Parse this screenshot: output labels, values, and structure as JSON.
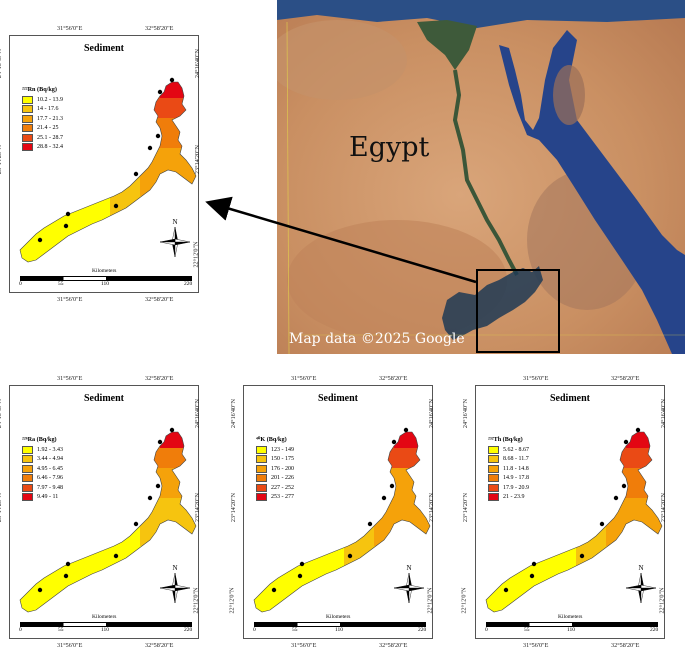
{
  "map_title": "Sediment",
  "coords": {
    "top_left": "31°56'0\"E",
    "top_right": "32°58'20\"E",
    "bottom_left": "31°56'0\"E",
    "bottom_right": "32°58'20\"E",
    "lat_top": "24°16'40\"N",
    "lat_mid": "23°14'20\"N",
    "lat_bottom": "22°12'0\"N"
  },
  "scale": {
    "title": "Kilometers",
    "t0": "0",
    "t1": "55",
    "t2": "110",
    "t3": "220"
  },
  "north_label": "N",
  "satellite": {
    "country_label": "Egypt",
    "attribution": "Map data ©2025 Google"
  },
  "colors": [
    "#ffff00",
    "#f6c40f",
    "#f5a20a",
    "#f07d0a",
    "#ea4a15",
    "#e30613"
  ],
  "panels": {
    "rn": {
      "legend_title": "²²²Rn (Bq/kg)",
      "classes": [
        "10.2 - 13.9",
        "14 - 17.6",
        "17.7 - 21.3",
        "21.4 - 25",
        "25.1 - 28.7",
        "28.8 - 32.4"
      ]
    },
    "ra": {
      "legend_title": "²²⁶Ra (Bq/kg)",
      "classes": [
        "1.92 - 3.43",
        "3.44 - 4.94",
        "4.95 - 6.45",
        "6.46 - 7.96",
        "7.97 - 9.48",
        "9.49 - 11"
      ]
    },
    "k": {
      "legend_title": "⁴⁰K (Bq/kg)",
      "classes": [
        "123 - 149",
        "150 - 175",
        "176 - 200",
        "201 - 226",
        "227 - 252",
        "253 - 277"
      ]
    },
    "th": {
      "legend_title": "²³²Th (Bq/kg)",
      "classes": [
        "5.62 - 8.67",
        "8.68 - 11.7",
        "11.8 - 14.8",
        "14.9 - 17.8",
        "17.9 - 20.9",
        "21 - 23.9"
      ]
    }
  }
}
